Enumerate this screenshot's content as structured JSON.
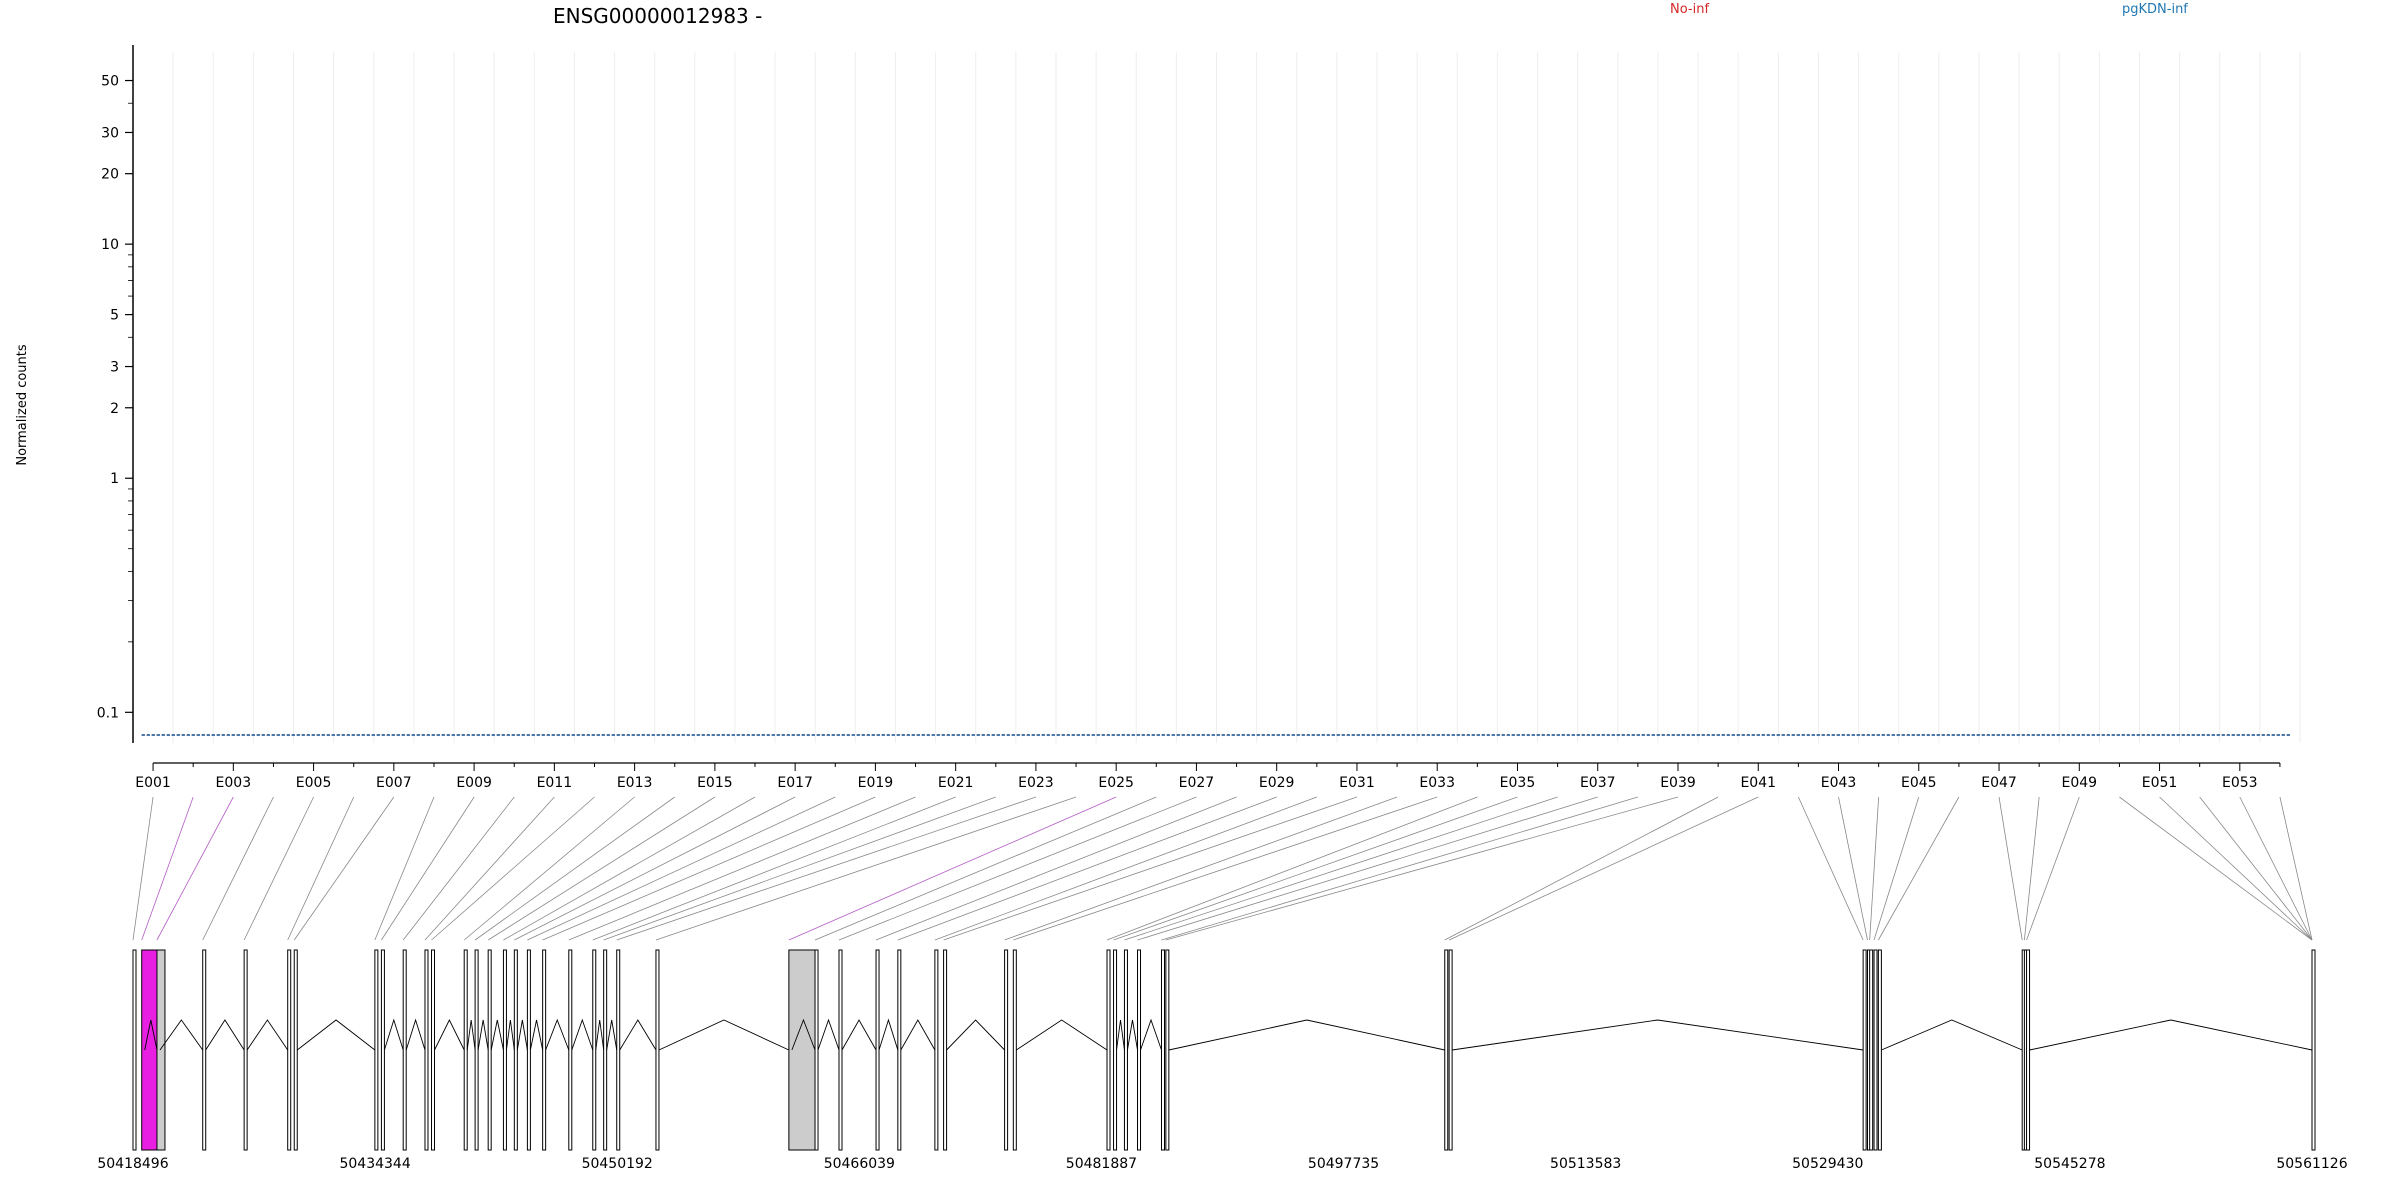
{
  "chart_data": {
    "type": "line",
    "title": "ENSG00000012983 -",
    "ylabel": "Normalized counts",
    "xlabel": "",
    "y_scale": "log",
    "ylim": [
      0.08,
      60
    ],
    "yticks": [
      0.1,
      1,
      2,
      3,
      5,
      10,
      20,
      30,
      50
    ],
    "ytick_labels": [
      "0.1",
      "1",
      "2",
      "3",
      "5",
      "10",
      "20",
      "30",
      "50"
    ],
    "grid": true,
    "legend_position": "top",
    "exon_count": 54,
    "exon_tick_labels": [
      "E001",
      "E003",
      "E005",
      "E007",
      "E009",
      "E011",
      "E013",
      "E015",
      "E017",
      "E019",
      "E021",
      "E023",
      "E025",
      "E027",
      "E029",
      "E031",
      "E033",
      "E035",
      "E037",
      "E039",
      "E041",
      "E043",
      "E045",
      "E047",
      "E049",
      "E051",
      "E053"
    ],
    "series": [
      {
        "name": "No-inf",
        "color": "#d62728",
        "samples": [
          [
            0.08,
            0.08,
            0.08,
            0.08,
            0.08,
            0.08,
            0.08,
            0.08,
            0.08,
            0.08,
            0.08,
            0.08,
            0.08,
            0.08,
            0.08,
            0.08,
            0.08,
            0.08,
            0.08,
            0.08,
            0.08,
            0.08,
            0.08,
            0.08,
            0.08,
            0.08,
            0.08,
            0.08,
            0.08,
            0.08,
            0.08,
            0.08,
            0.08,
            0.08,
            0.08,
            0.08,
            0.08,
            0.08,
            0.08,
            0.08,
            0.08,
            0.08,
            0.08,
            0.08,
            0.08,
            0.08,
            0.08,
            0.08,
            0.08,
            0.08,
            0.08,
            0.08,
            0.08,
            0.08
          ],
          [
            0.08,
            0.08,
            0.08,
            0.08,
            0.08,
            0.08,
            0.08,
            0.08,
            0.08,
            0.08,
            0.08,
            0.08,
            0.08,
            0.08,
            0.08,
            0.08,
            0.08,
            0.08,
            0.08,
            0.08,
            0.08,
            0.08,
            0.08,
            0.08,
            0.08,
            0.08,
            0.08,
            0.08,
            0.08,
            0.08,
            0.08,
            0.08,
            0.08,
            0.08,
            0.08,
            0.08,
            0.08,
            0.08,
            0.08,
            0.08,
            0.08,
            0.08,
            0.08,
            0.08,
            0.08,
            0.08,
            0.08,
            0.08,
            0.08,
            0.08,
            0.08,
            0.08,
            0.08,
            0.08
          ],
          [
            0.08,
            0.08,
            0.08,
            0.08,
            0.08,
            0.08,
            0.08,
            0.08,
            0.08,
            0.08,
            0.08,
            0.08,
            0.08,
            0.08,
            0.08,
            0.08,
            0.08,
            0.08,
            0.08,
            0.08,
            0.08,
            0.08,
            0.08,
            0.08,
            0.08,
            0.08,
            0.08,
            0.08,
            0.08,
            0.08,
            0.08,
            0.08,
            0.08,
            0.08,
            0.08,
            0.08,
            0.08,
            0.08,
            0.08,
            0.08,
            0.08,
            0.08,
            0.08,
            0.08,
            0.08,
            0.08,
            0.08,
            0.08,
            0.08,
            0.08,
            0.08,
            0.08,
            0.08,
            0.08
          ]
        ]
      },
      {
        "name": "pgKDN-inf",
        "color": "#1f77b4",
        "samples": [
          [
            0.08,
            0.08,
            0.08,
            0.08,
            0.08,
            0.08,
            0.08,
            0.08,
            0.08,
            0.08,
            0.08,
            0.08,
            0.08,
            0.08,
            0.08,
            0.08,
            0.08,
            0.08,
            0.08,
            0.08,
            0.08,
            0.08,
            0.08,
            0.08,
            0.08,
            0.08,
            0.08,
            0.08,
            0.08,
            0.08,
            0.08,
            0.08,
            0.08,
            0.08,
            0.08,
            0.08,
            0.08,
            0.08,
            0.08,
            0.08,
            0.08,
            0.08,
            0.08,
            0.08,
            0.08,
            0.08,
            0.08,
            0.08,
            0.08,
            0.08,
            0.08,
            0.08,
            0.08,
            0.08
          ],
          [
            0.08,
            0.08,
            0.08,
            0.08,
            0.08,
            0.08,
            0.08,
            0.08,
            0.08,
            0.08,
            0.08,
            0.08,
            0.08,
            0.08,
            0.08,
            0.08,
            0.08,
            0.08,
            0.08,
            0.08,
            0.08,
            0.08,
            0.08,
            0.08,
            0.08,
            0.08,
            0.08,
            0.08,
            0.08,
            0.08,
            0.08,
            0.08,
            0.08,
            0.08,
            0.08,
            0.08,
            0.08,
            0.08,
            0.08,
            0.08,
            0.08,
            0.08,
            0.08,
            0.08,
            0.08,
            0.08,
            0.08,
            0.08,
            0.08,
            0.08,
            0.08,
            0.08,
            0.08,
            0.08
          ],
          [
            0.08,
            0.08,
            0.08,
            0.08,
            0.08,
            0.08,
            0.08,
            0.08,
            0.08,
            0.08,
            0.08,
            0.08,
            0.08,
            0.08,
            0.08,
            0.08,
            0.08,
            0.08,
            0.08,
            0.08,
            0.08,
            0.08,
            0.08,
            0.08,
            0.08,
            0.08,
            0.08,
            0.08,
            0.08,
            0.08,
            0.08,
            0.08,
            0.08,
            0.08,
            0.08,
            0.08,
            0.08,
            0.08,
            0.08,
            0.08,
            0.08,
            0.08,
            0.08,
            0.08,
            0.08,
            0.08,
            0.08,
            0.08,
            0.08,
            0.08,
            0.08,
            0.08,
            0.08,
            0.08
          ]
        ]
      }
    ],
    "genomic_axis_labels": [
      "50418496",
      "50434344",
      "50450192",
      "50466039",
      "50481887",
      "50497735",
      "50513583",
      "50529430",
      "50545278",
      "50561126"
    ],
    "genomic_range": [
      50418496,
      50561126
    ],
    "highlight_exons": [
      {
        "exon": "E002",
        "color": "#e91ee3"
      },
      {
        "exon": "E003",
        "color": "#cccccc"
      },
      {
        "exon": "E024",
        "color": "#cccccc"
      }
    ]
  }
}
